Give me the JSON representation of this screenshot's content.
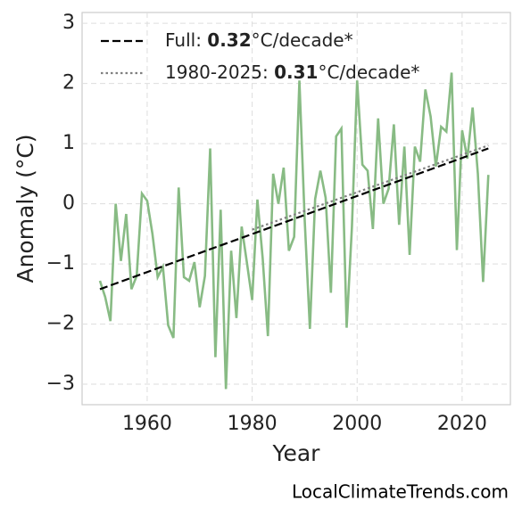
{
  "chart_data": {
    "type": "line",
    "xlabel": "Year",
    "ylabel": "Anomaly (°C)",
    "footer": "LocalClimateTrends.com",
    "xlim": [
      1947.6,
      2029.2
    ],
    "ylim": [
      -3.34,
      3.18
    ],
    "xticks": [
      1960,
      1980,
      2000,
      2020
    ],
    "yticks": [
      {
        "value": -3,
        "label": "−3"
      },
      {
        "value": -2,
        "label": "−2"
      },
      {
        "value": -1,
        "label": "−1"
      },
      0,
      1,
      2,
      3
    ],
    "grid": true,
    "legend": "upper left",
    "series": [
      {
        "color": "#88bb84",
        "style": "solid",
        "x": [
          1951,
          1952,
          1953,
          1954,
          1955,
          1956,
          1957,
          1958,
          1959,
          1960,
          1961,
          1962,
          1963,
          1964,
          1965,
          1966,
          1967,
          1968,
          1969,
          1970,
          1971,
          1972,
          1973,
          1974,
          1975,
          1976,
          1977,
          1978,
          1979,
          1980,
          1981,
          1982,
          1983,
          1984,
          1985,
          1986,
          1987,
          1988,
          1989,
          1990,
          1991,
          1992,
          1993,
          1994,
          1995,
          1996,
          1997,
          1998,
          1999,
          2000,
          2001,
          2002,
          2003,
          2004,
          2005,
          2006,
          2007,
          2008,
          2009,
          2010,
          2011,
          2012,
          2013,
          2014,
          2015,
          2016,
          2017,
          2018,
          2019,
          2020,
          2021,
          2022,
          2023,
          2024,
          2025
        ],
        "values": [
          -1.28,
          -1.55,
          -1.95,
          0.0,
          -0.95,
          -0.17,
          -1.42,
          -1.2,
          0.17,
          0.05,
          -0.5,
          -1.22,
          -1.05,
          -2.02,
          -2.23,
          0.27,
          -1.22,
          -1.28,
          -0.97,
          -1.72,
          -1.2,
          0.92,
          -2.55,
          -0.1,
          -3.08,
          -0.78,
          -1.9,
          -0.38,
          -0.98,
          -1.6,
          0.07,
          -0.9,
          -2.2,
          0.5,
          0.0,
          0.6,
          -0.78,
          -0.55,
          2.05,
          -0.25,
          -2.08,
          0.08,
          0.55,
          0.1,
          -1.48,
          1.12,
          1.25,
          -2.06,
          -0.4,
          2.05,
          0.65,
          0.55,
          -0.42,
          1.42,
          0.0,
          0.25,
          1.32,
          -0.35,
          0.95,
          -0.85,
          0.95,
          0.7,
          1.9,
          1.45,
          0.62,
          1.28,
          1.2,
          2.18,
          -0.77,
          1.22,
          0.75,
          1.6,
          0.5,
          -1.3,
          0.48
        ]
      },
      {
        "color": "#000000",
        "style": "dashed",
        "name_parts": [
          "Full: ",
          "0.32",
          "°C/decade*"
        ],
        "x": [
          1951,
          2025
        ],
        "values": [
          -1.42,
          0.92
        ]
      },
      {
        "color": "#808080",
        "style": "dotted",
        "name_parts": [
          "1980-2025: ",
          "0.31",
          "°C/decade*"
        ],
        "x": [
          1980,
          2025
        ],
        "values": [
          -0.43,
          0.97
        ]
      }
    ]
  }
}
